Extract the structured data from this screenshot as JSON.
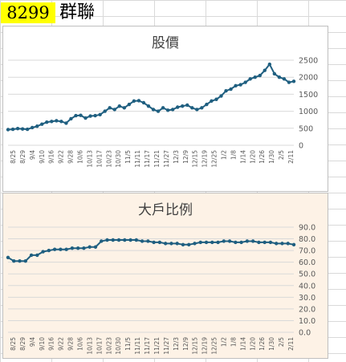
{
  "header": {
    "ticker": "8299",
    "company": "群聯"
  },
  "colors": {
    "line": "#1f5f80",
    "ticker_bg": "#ffff00",
    "chart2_bg": "#fdf2e6"
  },
  "chart_data": [
    {
      "type": "line",
      "title": "股價",
      "ylim": [
        0,
        2500
      ],
      "yticks": [
        "0",
        "500",
        "1000",
        "1500",
        "2000",
        "2500"
      ],
      "xlabels": [
        "8/25",
        "8/29",
        "9/4",
        "9/10",
        "9/16",
        "9/22",
        "9/28",
        "10/6",
        "10/13",
        "10/17",
        "10/23",
        "10/30",
        "11/5",
        "11/11",
        "11/17",
        "11/21",
        "11/27",
        "12/3",
        "12/9",
        "12/15",
        "12/19",
        "12/25",
        "1/2",
        "1/8",
        "1/14",
        "1/20",
        "1/26",
        "1/30",
        "2/5",
        "2/11"
      ],
      "grid": true,
      "points": [
        [
          0,
          460
        ],
        [
          1,
          470
        ],
        [
          2,
          490
        ],
        [
          3,
          480
        ],
        [
          4,
          470
        ],
        [
          5,
          520
        ],
        [
          6,
          560
        ],
        [
          7,
          620
        ],
        [
          8,
          680
        ],
        [
          9,
          700
        ],
        [
          10,
          720
        ],
        [
          11,
          700
        ],
        [
          12,
          650
        ],
        [
          13,
          780
        ],
        [
          14,
          870
        ],
        [
          15,
          880
        ],
        [
          16,
          800
        ],
        [
          17,
          860
        ],
        [
          18,
          870
        ],
        [
          19,
          900
        ],
        [
          20,
          1000
        ],
        [
          21,
          1100
        ],
        [
          22,
          1050
        ],
        [
          23,
          1150
        ],
        [
          24,
          1100
        ],
        [
          25,
          1200
        ],
        [
          26,
          1300
        ],
        [
          27,
          1310
        ],
        [
          28,
          1250
        ],
        [
          29,
          1150
        ],
        [
          30,
          1050
        ],
        [
          31,
          1000
        ],
        [
          32,
          1100
        ],
        [
          33,
          1030
        ],
        [
          34,
          1050
        ],
        [
          35,
          1120
        ],
        [
          36,
          1150
        ],
        [
          37,
          1180
        ],
        [
          38,
          1100
        ],
        [
          39,
          1050
        ],
        [
          40,
          1100
        ],
        [
          41,
          1200
        ],
        [
          42,
          1300
        ],
        [
          43,
          1350
        ],
        [
          44,
          1450
        ],
        [
          45,
          1600
        ],
        [
          46,
          1650
        ],
        [
          47,
          1750
        ],
        [
          48,
          1780
        ],
        [
          49,
          1850
        ],
        [
          50,
          1950
        ],
        [
          51,
          2000
        ],
        [
          52,
          2050
        ],
        [
          53,
          2200
        ],
        [
          54,
          2380
        ],
        [
          55,
          2100
        ],
        [
          56,
          2000
        ],
        [
          57,
          1950
        ],
        [
          58,
          1850
        ],
        [
          59,
          1880
        ]
      ]
    },
    {
      "type": "line",
      "title": "大戶比例",
      "ylim": [
        0,
        90
      ],
      "yticks": [
        "0.0",
        "10.0",
        "20.0",
        "30.0",
        "40.0",
        "50.0",
        "60.0",
        "70.0",
        "80.0",
        "90.0"
      ],
      "xlabels": [
        "8/25",
        "8/29",
        "9/4",
        "9/10",
        "9/16",
        "9/22",
        "9/28",
        "10/6",
        "10/13",
        "10/17",
        "10/23",
        "10/30",
        "11/5",
        "11/11",
        "11/17",
        "11/21",
        "11/27",
        "12/3",
        "12/9",
        "12/15",
        "12/19",
        "12/25",
        "1/2",
        "1/8",
        "1/14",
        "1/20",
        "1/26",
        "1/30",
        "2/5",
        "2/11"
      ],
      "grid": true,
      "points": [
        [
          0,
          64
        ],
        [
          1,
          61
        ],
        [
          2,
          61
        ],
        [
          3,
          61
        ],
        [
          4,
          66
        ],
        [
          5,
          66
        ],
        [
          6,
          69
        ],
        [
          7,
          70
        ],
        [
          8,
          71
        ],
        [
          9,
          71
        ],
        [
          10,
          71
        ],
        [
          11,
          72
        ],
        [
          12,
          72
        ],
        [
          13,
          72
        ],
        [
          14,
          73
        ],
        [
          15,
          73
        ],
        [
          16,
          78
        ],
        [
          17,
          79
        ],
        [
          18,
          79
        ],
        [
          19,
          79
        ],
        [
          20,
          79
        ],
        [
          21,
          79
        ],
        [
          22,
          79
        ],
        [
          23,
          78
        ],
        [
          24,
          78
        ],
        [
          25,
          77
        ],
        [
          26,
          77
        ],
        [
          27,
          76
        ],
        [
          28,
          76
        ],
        [
          29,
          76
        ],
        [
          30,
          75
        ],
        [
          31,
          75
        ],
        [
          32,
          76
        ],
        [
          33,
          77
        ],
        [
          34,
          77
        ],
        [
          35,
          77
        ],
        [
          36,
          77
        ],
        [
          37,
          78
        ],
        [
          38,
          78
        ],
        [
          39,
          77
        ],
        [
          40,
          77
        ],
        [
          41,
          78
        ],
        [
          42,
          78
        ],
        [
          43,
          77
        ],
        [
          44,
          77
        ],
        [
          45,
          77
        ],
        [
          46,
          76
        ],
        [
          47,
          76
        ],
        [
          48,
          76
        ],
        [
          49,
          75
        ]
      ]
    }
  ]
}
